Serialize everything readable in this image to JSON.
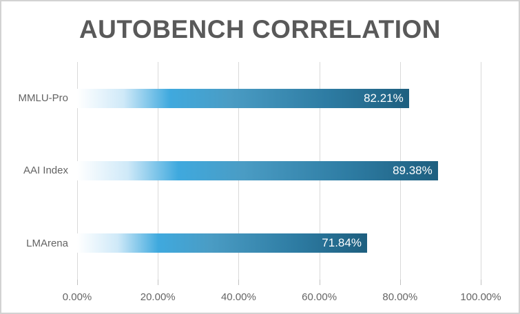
{
  "window": {
    "background": "#ffffff",
    "border_color": "#d2d2d2"
  },
  "chart_data": {
    "type": "bar",
    "orientation": "horizontal",
    "title": "AUTOBENCH CORRELATION",
    "categories": [
      "MMLU-Pro",
      "AAI Index",
      "LMArena"
    ],
    "values": [
      82.21,
      89.38,
      71.84
    ],
    "value_labels": [
      "82.21%",
      "89.38%",
      "71.84%"
    ],
    "xlabel": "",
    "ylabel": "",
    "xlim": [
      0,
      100
    ],
    "x_tick_labels": [
      "0.00%",
      "20.00%",
      "40.00%",
      "60.00%",
      "80.00%",
      "100.00%"
    ],
    "grid": true,
    "legend": false,
    "colors": {
      "title_text": "#595959",
      "axis_text": "#656565",
      "category_text": "#636363",
      "value_text": "#ffffff",
      "gridline": "#d9d9d9",
      "tick": "#c0c0c0",
      "bar_gradient_colors": [
        "#ffffff",
        "#cfe9f8",
        "#3fa9de",
        "#4a9cc4",
        "#2d7ba2",
        "#1e5f7f"
      ],
      "bar_gradient_stops": [
        0,
        14,
        28,
        46,
        76,
        100
      ]
    }
  }
}
